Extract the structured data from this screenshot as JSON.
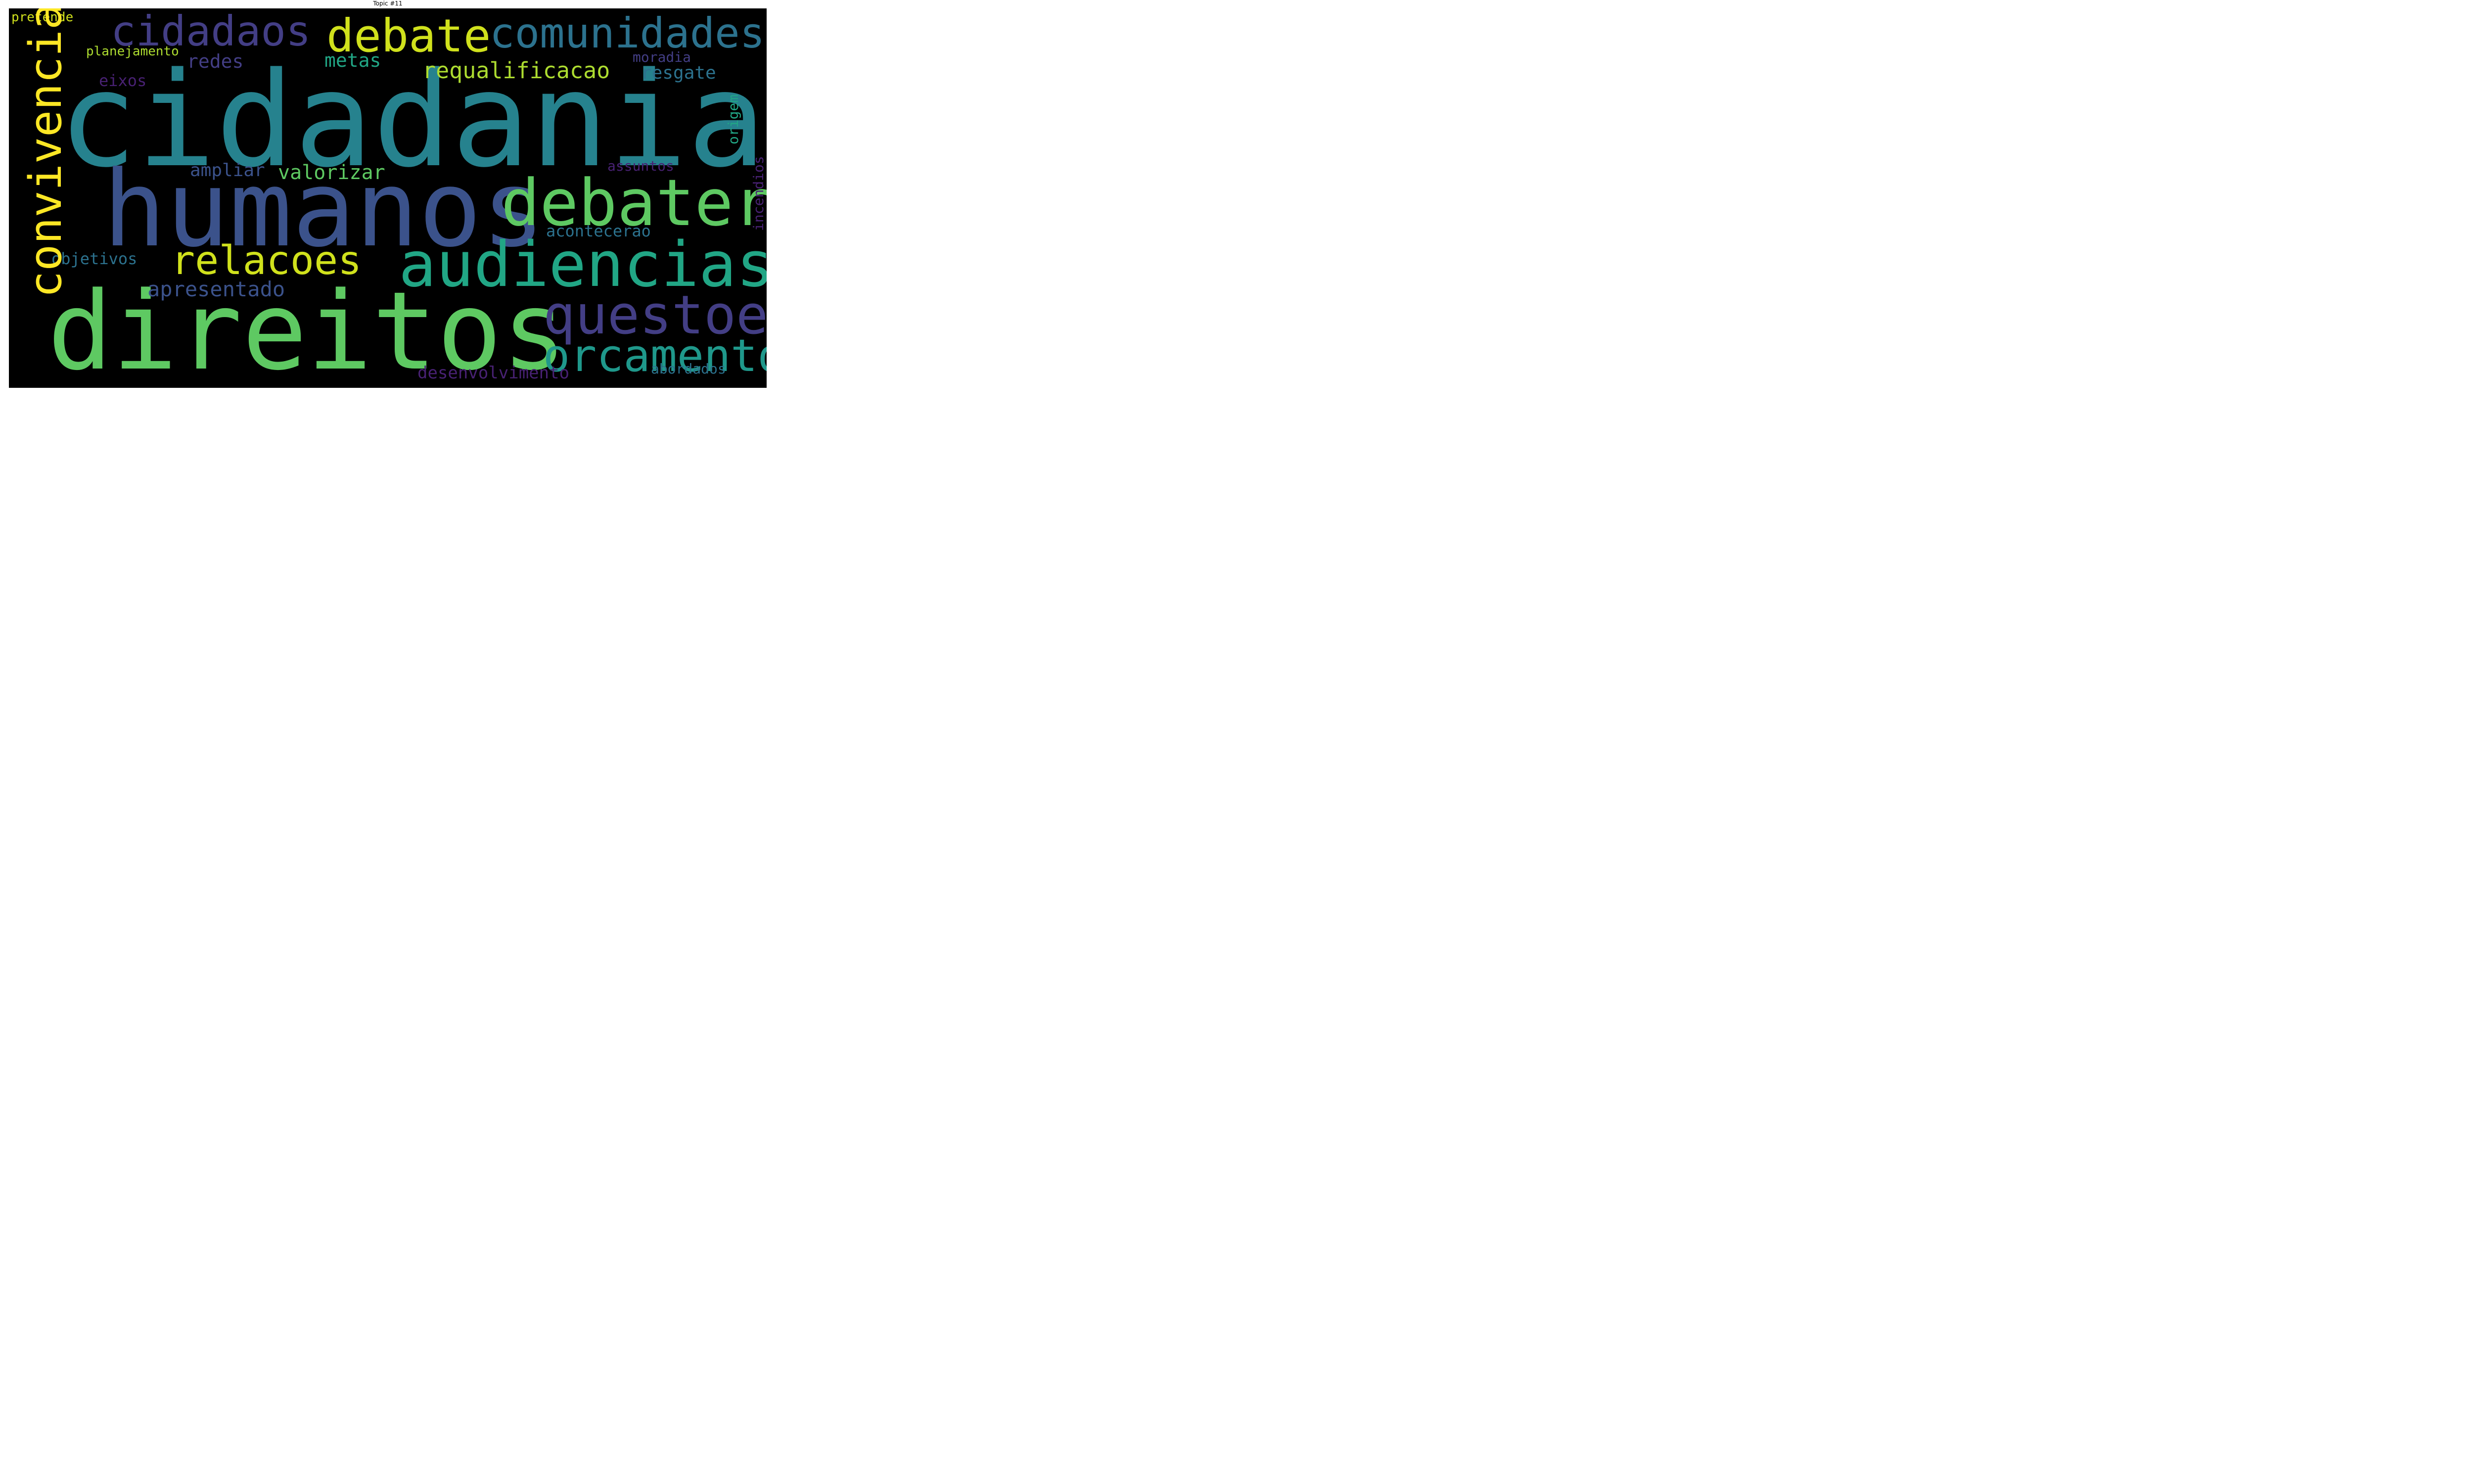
{
  "title": "Topic #11",
  "words": {
    "cidadania": "cidadania",
    "humanos": "humanos",
    "direitos": "direitos",
    "debater": "debater",
    "audiencias": "audiencias",
    "questoes": "questoes",
    "orcamento": "orcamento",
    "convivencia": "convivencia",
    "cidadaos": "cidadaos",
    "debate": "debate",
    "comunidades": "comunidades",
    "relacoes": "relacoes",
    "requalificacao": "requalificacao",
    "apresentado": "apresentado",
    "valorizar": "valorizar",
    "metas": "metas",
    "redes": "redes",
    "resgate": "resgate",
    "planejamento": "planejamento",
    "eixos": "eixos",
    "ampliar": "ampliar",
    "objetivos": "objetivos",
    "desenvolvimento": "desenvolvimento",
    "acontecerao": "acontecerao",
    "abordados": "abordados",
    "moradia": "moradia",
    "assuntos": "assuntos",
    "origem": "origem",
    "incendios": "incendios",
    "pretende": "pretende"
  },
  "colors": {
    "background": "#000000",
    "teal": "#26828e",
    "slate_blue": "#3b528b",
    "green": "#5ec962",
    "yellow": "#fde725",
    "yellow_green": "#d0e11c",
    "light_green": "#addc30",
    "sea_green": "#21a685",
    "indigo": "#433e85",
    "purple": "#482173",
    "blue_teal": "#2c728e",
    "aqua": "#1f988b"
  }
}
